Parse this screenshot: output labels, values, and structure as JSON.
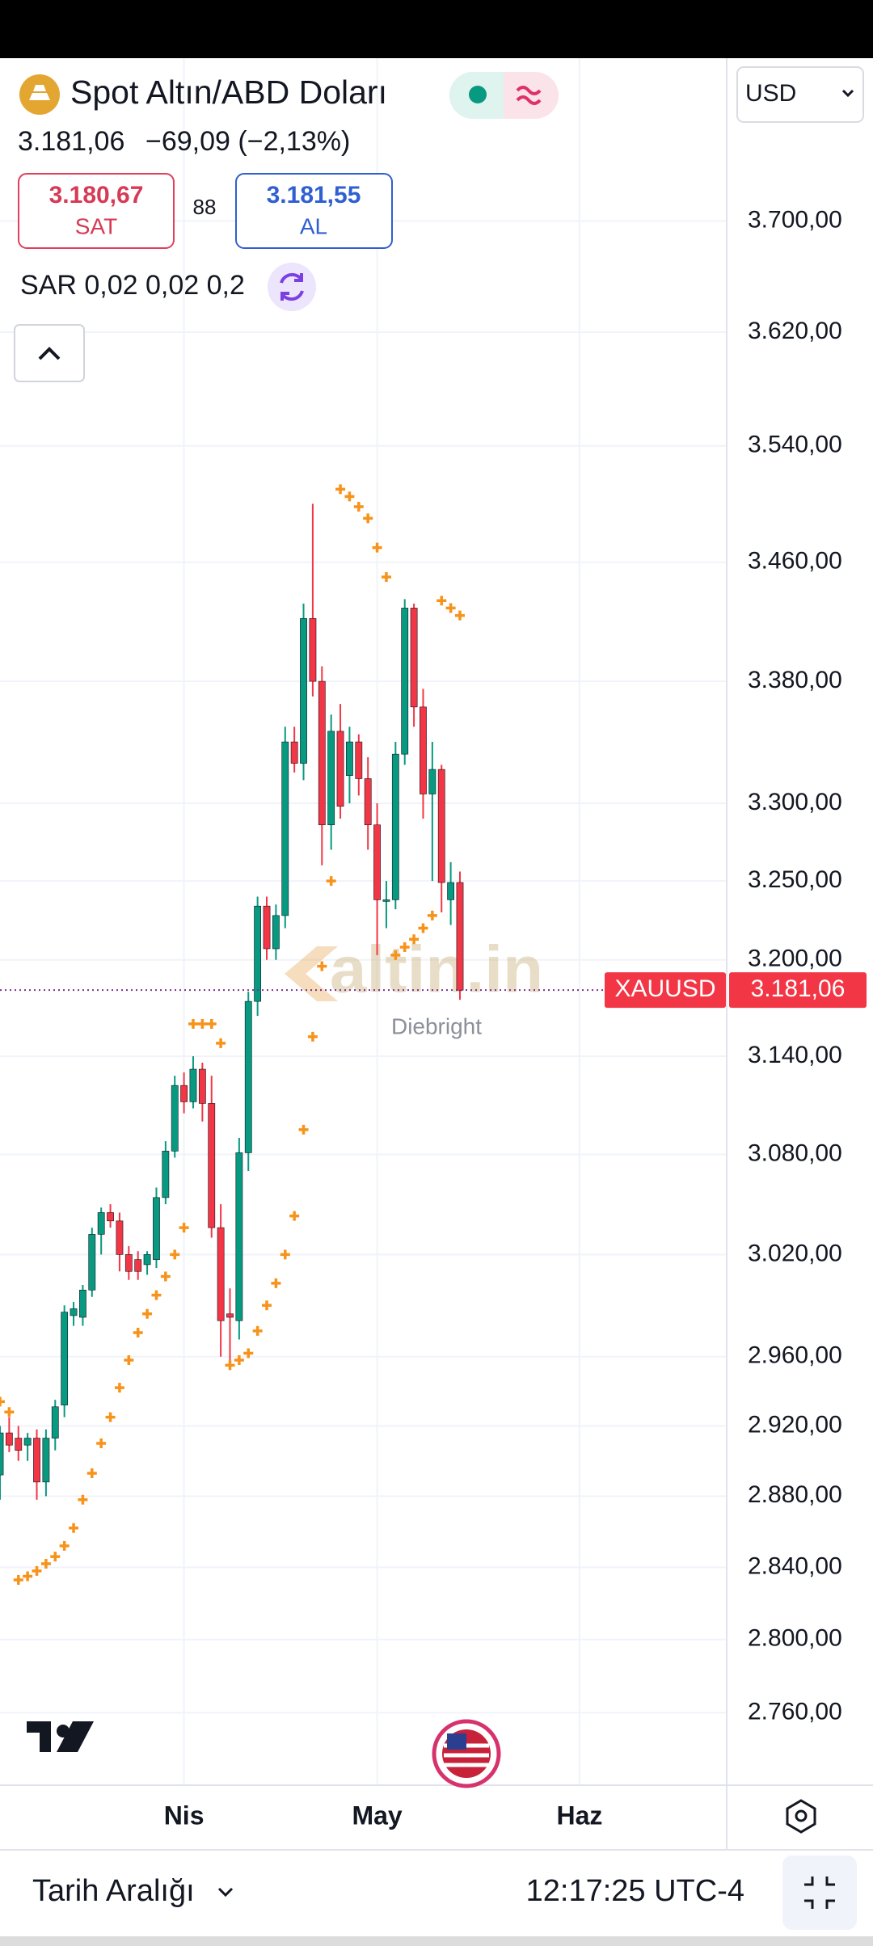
{
  "header": {
    "title": "Spot Altın/ABD Doları",
    "price": "3.181,06",
    "change": "−69,09 (−2,13%)",
    "currency": "USD",
    "sell": {
      "price": "3.180,67",
      "label": "SAT"
    },
    "spread": "88",
    "buy": {
      "price": "3.181,55",
      "label": "AL"
    }
  },
  "chart_data": {
    "type": "candlestick",
    "log_scale": true,
    "grid": true,
    "up_color": "#089981",
    "down_color": "#f23645",
    "open": [
      2892,
      2916,
      2913,
      2909,
      2913,
      2888,
      2913,
      2932,
      2984,
      2983,
      2999,
      3032,
      3045,
      3040,
      3020,
      3017,
      3014,
      3017,
      3054,
      3082,
      3122,
      3112,
      3132,
      3111,
      3036,
      2985,
      2981,
      3081,
      3174,
      3234,
      3207,
      3228,
      3340,
      3326,
      3422,
      3380,
      3286,
      3347,
      3318,
      3340,
      3316,
      3286,
      3237,
      3238,
      3332,
      3429,
      3363,
      3306,
      3322,
      3238,
      3249
    ],
    "high": [
      2920,
      2925,
      2920,
      2916,
      2918,
      2918,
      2935,
      2990,
      2992,
      3002,
      3036,
      3048,
      3050,
      3045,
      3025,
      3022,
      3022,
      3060,
      3088,
      3128,
      3130,
      3140,
      3136,
      3128,
      3050,
      3000,
      3090,
      3180,
      3240,
      3240,
      3235,
      3350,
      3350,
      3432,
      3500,
      3390,
      3358,
      3365,
      3350,
      3345,
      3330,
      3300,
      3250,
      3340,
      3435,
      3432,
      3375,
      3340,
      3325,
      3262,
      3256
    ],
    "low": [
      2878,
      2905,
      2900,
      2900,
      2878,
      2880,
      2906,
      2925,
      2978,
      2978,
      2995,
      3020,
      3036,
      3010,
      3005,
      3005,
      3008,
      3012,
      3050,
      3078,
      3105,
      3108,
      3100,
      3030,
      2960,
      2957,
      2970,
      3070,
      3165,
      3200,
      3200,
      3220,
      3320,
      3315,
      3370,
      3260,
      3270,
      3290,
      3300,
      3305,
      3270,
      3203,
      3220,
      3232,
      3325,
      3350,
      3290,
      3250,
      3230,
      3222,
      3175
    ],
    "close": [
      2916,
      2909,
      2906,
      2913,
      2888,
      2913,
      2931,
      2986,
      2988,
      2999,
      3032,
      3045,
      3040,
      3020,
      3010,
      3010,
      3020,
      3054,
      3082,
      3122,
      3112,
      3132,
      3111,
      3036,
      2981,
      2983,
      3081,
      3174,
      3234,
      3207,
      3228,
      3340,
      3326,
      3422,
      3380,
      3286,
      3347,
      3298,
      3340,
      3316,
      3286,
      3238,
      3238,
      3332,
      3429,
      3363,
      3306,
      3322,
      3249,
      3249,
      3181
    ],
    "indicator": {
      "label": "SAR 0,02 0,02 0,2",
      "color": "#f7931a",
      "values": [
        2934,
        2928,
        2833,
        2835,
        2838,
        2842,
        2846,
        2852,
        2862,
        2878,
        2893,
        2910,
        2925,
        2942,
        2958,
        2974,
        2985,
        2996,
        3007,
        3020,
        3036,
        3160,
        3160,
        3160,
        3148,
        2955,
        2958,
        2962,
        2975,
        2990,
        3003,
        3020,
        3043,
        3095,
        3152,
        3196,
        3250,
        3510,
        3505,
        3498,
        3490,
        3470,
        3450,
        3203,
        3208,
        3213,
        3220,
        3228,
        3434,
        3429,
        3424
      ]
    },
    "last_price": {
      "symbol": "XAUUSD",
      "value": 3181.06,
      "label": "3.181,06"
    },
    "xlim": [
      0,
      79
    ],
    "xticks": [
      {
        "value": 20,
        "label": "Nis"
      },
      {
        "value": 41,
        "label": "May"
      },
      {
        "value": 63,
        "label": "Haz"
      }
    ],
    "ylim": [
      2721,
      3819
    ],
    "yticks": [
      {
        "value": 3700,
        "label": "3.700,00"
      },
      {
        "value": 3620,
        "label": "3.620,00"
      },
      {
        "value": 3540,
        "label": "3.540,00"
      },
      {
        "value": 3460,
        "label": "3.460,00"
      },
      {
        "value": 3380,
        "label": "3.380,00"
      },
      {
        "value": 3300,
        "label": "3.300,00"
      },
      {
        "value": 3250,
        "label": "3.250,00"
      },
      {
        "value": 3200,
        "label": "3.200,00"
      },
      {
        "value": 3140,
        "label": "3.140,00"
      },
      {
        "value": 3080,
        "label": "3.080,00"
      },
      {
        "value": 3020,
        "label": "3.020,00"
      },
      {
        "value": 2960,
        "label": "2.960,00"
      },
      {
        "value": 2920,
        "label": "2.920,00"
      },
      {
        "value": 2880,
        "label": "2.880,00"
      },
      {
        "value": 2840,
        "label": "2.840,00"
      },
      {
        "value": 2800,
        "label": "2.800,00"
      },
      {
        "value": 2760,
        "label": "2.760,00"
      }
    ],
    "watermark": "altin.in",
    "author": "Diebright"
  },
  "footer": {
    "range": "Tarih Aralığı",
    "time": "12:17:25 UTC-4"
  }
}
